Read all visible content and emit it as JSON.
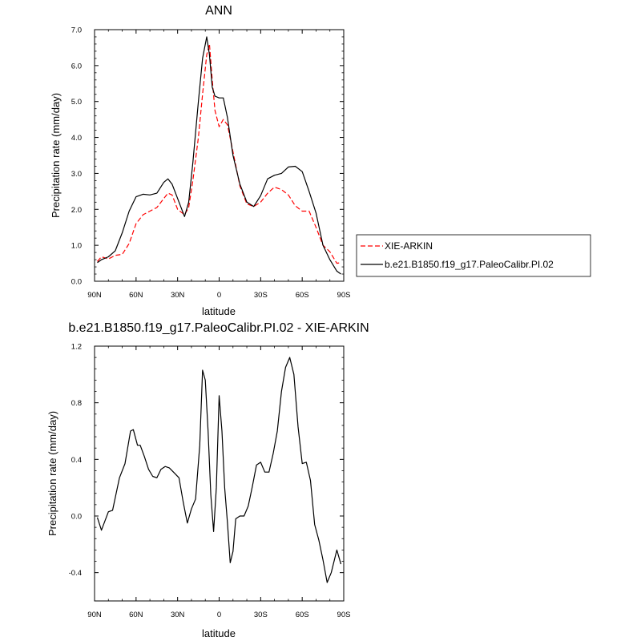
{
  "chart_data": [
    {
      "type": "line",
      "title": "ANN",
      "xlabel": "latitude",
      "ylabel": "Precipitation rate (mm/day)",
      "xlim": [
        90,
        -90
      ],
      "ylim": [
        0,
        7
      ],
      "x_ticks": [
        90,
        60,
        30,
        0,
        -30,
        -60,
        -90
      ],
      "x_tick_labels": [
        "90N",
        "60N",
        "30N",
        "0",
        "30S",
        "60S",
        "90S"
      ],
      "y_ticks": [
        0,
        1,
        2,
        3,
        4,
        5,
        6,
        7
      ],
      "y_tick_labels": [
        "0.0",
        "1.0",
        "2.0",
        "3.0",
        "4.0",
        "5.0",
        "6.0",
        "7.0"
      ],
      "legend": "right",
      "series": [
        {
          "name": "XIE-ARKIN",
          "color": "#ff0000",
          "dash": "dashed",
          "x": [
            88,
            85,
            80,
            75,
            70,
            65,
            60,
            55,
            50,
            45,
            40,
            37,
            34,
            30,
            25,
            22,
            19,
            15,
            12,
            9,
            7,
            5,
            3,
            0,
            -3,
            -6,
            -10,
            -15,
            -20,
            -25,
            -30,
            -35,
            -40,
            -45,
            -50,
            -55,
            -60,
            -65,
            -70,
            -75,
            -80,
            -85,
            -88
          ],
          "y": [
            0.55,
            0.68,
            0.62,
            0.72,
            0.75,
            1.05,
            1.6,
            1.85,
            1.95,
            2.05,
            2.3,
            2.45,
            2.4,
            2.0,
            1.85,
            2.05,
            2.8,
            4.0,
            5.2,
            6.3,
            6.6,
            5.6,
            4.75,
            4.3,
            4.5,
            4.35,
            3.6,
            2.65,
            2.15,
            2.08,
            2.2,
            2.45,
            2.62,
            2.55,
            2.4,
            2.1,
            1.95,
            1.95,
            1.5,
            1.0,
            0.82,
            0.5,
            0.52
          ]
        },
        {
          "name": "b.e21.B1850.f19_g17.PaleoCalibr.PI.02",
          "color": "#000000",
          "dash": "solid",
          "x": [
            88,
            85,
            80,
            75,
            70,
            65,
            60,
            55,
            50,
            45,
            40,
            37,
            34,
            30,
            25,
            22,
            19,
            15,
            12,
            9,
            7,
            5,
            3,
            0,
            -3,
            -6,
            -10,
            -15,
            -20,
            -25,
            -30,
            -35,
            -40,
            -45,
            -50,
            -55,
            -60,
            -65,
            -70,
            -75,
            -80,
            -85,
            -88
          ],
          "y": [
            0.52,
            0.6,
            0.68,
            0.85,
            1.35,
            1.95,
            2.35,
            2.42,
            2.4,
            2.45,
            2.75,
            2.85,
            2.7,
            2.3,
            1.8,
            2.2,
            3.3,
            5.0,
            6.2,
            6.8,
            6.3,
            5.4,
            5.15,
            5.1,
            5.1,
            4.55,
            3.5,
            2.7,
            2.2,
            2.08,
            2.38,
            2.85,
            2.95,
            3.0,
            3.18,
            3.2,
            3.05,
            2.5,
            1.9,
            1.0,
            0.6,
            0.28,
            0.2
          ]
        }
      ]
    },
    {
      "type": "line",
      "title": "b.e21.B1850.f19_g17.PaleoCalibr.PI.02 - XIE-ARKIN",
      "xlabel": "latitude",
      "ylabel": "Precipitation rate (mm/day)",
      "xlim": [
        90,
        -90
      ],
      "ylim": [
        -0.6,
        1.2
      ],
      "x_ticks": [
        90,
        60,
        30,
        0,
        -30,
        -60,
        -90
      ],
      "x_tick_labels": [
        "90N",
        "60N",
        "30N",
        "0",
        "30S",
        "60S",
        "90S"
      ],
      "y_ticks": [
        -0.4,
        0.0,
        0.4,
        0.8,
        1.2
      ],
      "y_tick_labels": [
        "-0.4",
        "0.0",
        "0.4",
        "0.8",
        "1.2"
      ],
      "series": [
        {
          "name": "",
          "color": "#000000",
          "dash": "solid",
          "x": [
            88,
            85,
            80,
            77,
            72,
            68,
            64,
            62,
            59,
            57,
            54,
            51,
            48,
            45,
            42,
            39,
            36,
            33,
            29,
            26,
            23,
            20,
            17,
            14,
            12,
            10,
            8,
            6,
            4,
            2,
            0,
            -2,
            -4,
            -6,
            -8,
            -10,
            -12,
            -15,
            -18,
            -21,
            -24,
            -27,
            -30,
            -33,
            -36,
            -39,
            -42,
            -45,
            -48,
            -51,
            -54,
            -57,
            -60,
            -63,
            -66,
            -69,
            -72,
            -75,
            -78,
            -81,
            -85,
            -88
          ],
          "y": [
            -0.01,
            -0.1,
            0.03,
            0.04,
            0.27,
            0.37,
            0.6,
            0.61,
            0.5,
            0.5,
            0.42,
            0.33,
            0.28,
            0.27,
            0.33,
            0.35,
            0.34,
            0.31,
            0.27,
            0.1,
            -0.05,
            0.05,
            0.12,
            0.5,
            1.03,
            0.96,
            0.6,
            0.15,
            -0.11,
            0.2,
            0.85,
            0.6,
            0.2,
            -0.05,
            -0.33,
            -0.25,
            -0.02,
            0.0,
            0.0,
            0.07,
            0.21,
            0.36,
            0.38,
            0.31,
            0.31,
            0.44,
            0.6,
            0.88,
            1.05,
            1.12,
            1.0,
            0.63,
            0.37,
            0.38,
            0.25,
            -0.06,
            -0.17,
            -0.31,
            -0.47,
            -0.4,
            -0.24,
            -0.34
          ]
        }
      ]
    }
  ]
}
